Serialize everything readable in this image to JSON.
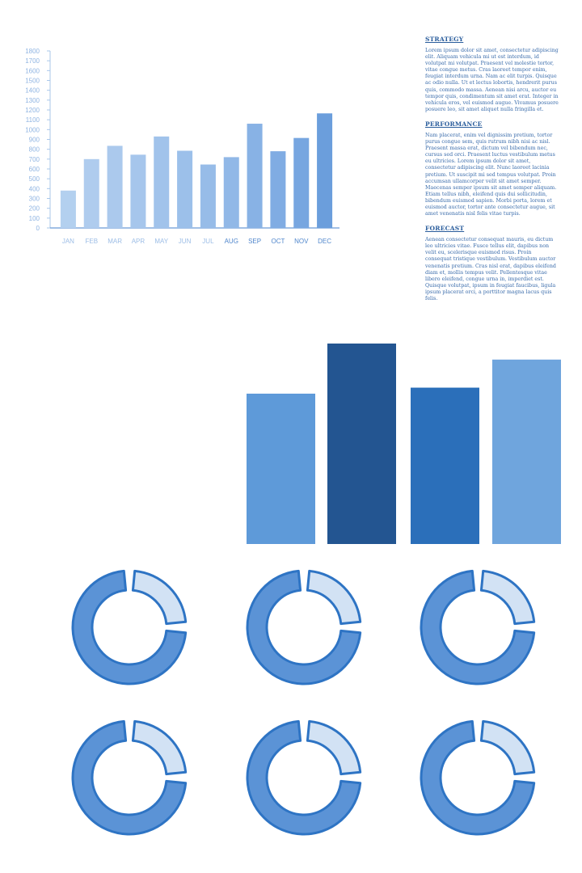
{
  "chart_data": [
    {
      "type": "bar",
      "categories": [
        "JAN",
        "FEB",
        "MAR",
        "APR",
        "MAY",
        "JUN",
        "JUL",
        "AUG",
        "SEP",
        "OCT",
        "NOV",
        "DEC"
      ],
      "values": [
        380,
        700,
        835,
        745,
        930,
        785,
        645,
        720,
        1060,
        780,
        915,
        1165
      ],
      "ylim": [
        0,
        1800
      ],
      "yticks": [
        0,
        100,
        200,
        300,
        400,
        500,
        600,
        700,
        800,
        900,
        1000,
        1100,
        1200,
        1300,
        1400,
        1500,
        1600,
        1700,
        1800
      ],
      "colors": [
        "#b3d0ef",
        "#afccee",
        "#abc9ed",
        "#a6c6ec",
        "#a1c3eb",
        "#9cc0ea",
        "#97bce8",
        "#91b8e7",
        "#88b2e5",
        "#80ace3",
        "#77a6e0",
        "#6b9edc"
      ]
    },
    {
      "type": "bar",
      "categories": [
        "",
        "",
        "",
        ""
      ],
      "values": [
        75,
        100,
        78,
        92
      ],
      "ylim": [
        0,
        100
      ],
      "colors": [
        "#5e9ad9",
        "#235591",
        "#2b6fba",
        "#6fa5dd"
      ]
    },
    {
      "type": "pie",
      "slices": [
        0.75,
        0.25
      ],
      "count": 6,
      "colors": [
        "#5b93d6",
        "#d2e2f4"
      ],
      "stroke": "#2e74c4"
    }
  ],
  "text_panel": {
    "sections": [
      {
        "heading": "STRATEGY",
        "body": "Lorem ipsum dolor sit amet, consectetur adipiscing elit. Aliquam vehicula mi ut est interdum, id volutpat mi volutpat. Praesent vel molestie tortor, vitae congue metus. Cras laoreet tempor enim, feugiat interdum urna. Nam ac elit turpis. Quisque ac odio nulla. Ut et lectus lobortis, hendrerit purus quis, commodo massa. Aenean nisi arcu, auctor eu tempor quis, condimentum sit amet erat. Integer in vehicula eros, vel euismod augue. Vivamus posuere posuere leo, sit amet aliquet nulla fringilla et."
      },
      {
        "heading": "PERFORMANCE",
        "body": "Nam placerat, enim vel dignissim pretium, tortor purus congue sem, quis rutrum nibh nisi ac nisl. Praesent massa erat, dictum vel bibendum nec, cursus sed orci. Praesent luctus vestibulum metus eu ultricies. Lorem ipsum dolor sit amet, consectetur adipiscing elit. Nunc laoreet lacinia pretium. Ut suscipit mi sed tempus volutpat. Proin accumsan ullamcorper velit sit amet semper. Maecenas semper ipsum sit amet semper aliquam. Etiam tellus nibh, eleifend quis dui sollicitudin, bibendum euismod sapien. Morbi porta, lorem et euismod auctor, tortor ante consectetur augue, sit amet venenatis nisl felis vitae turpis."
      },
      {
        "heading": "FORECAST",
        "body": "Aenean consectetur consequat mauris, eu dictum leo ultricies vitae. Fusce tellus elit, dapibus non velit eu, scelerisque euismod risus. Proin consequat tristique vestibulum. Vestibulum auctor venenatis pretium. Cras nisl erat, dapibus eleifend diam et, mollis tempus velit. Pellentesque vitae libero eleifend, congue urna in, imperdiet est. Quisque volutpat, ipsum in feugiat faucibus, ligula ipsum placerat orci, a porttitor magna lacus quis felis."
      }
    ]
  }
}
